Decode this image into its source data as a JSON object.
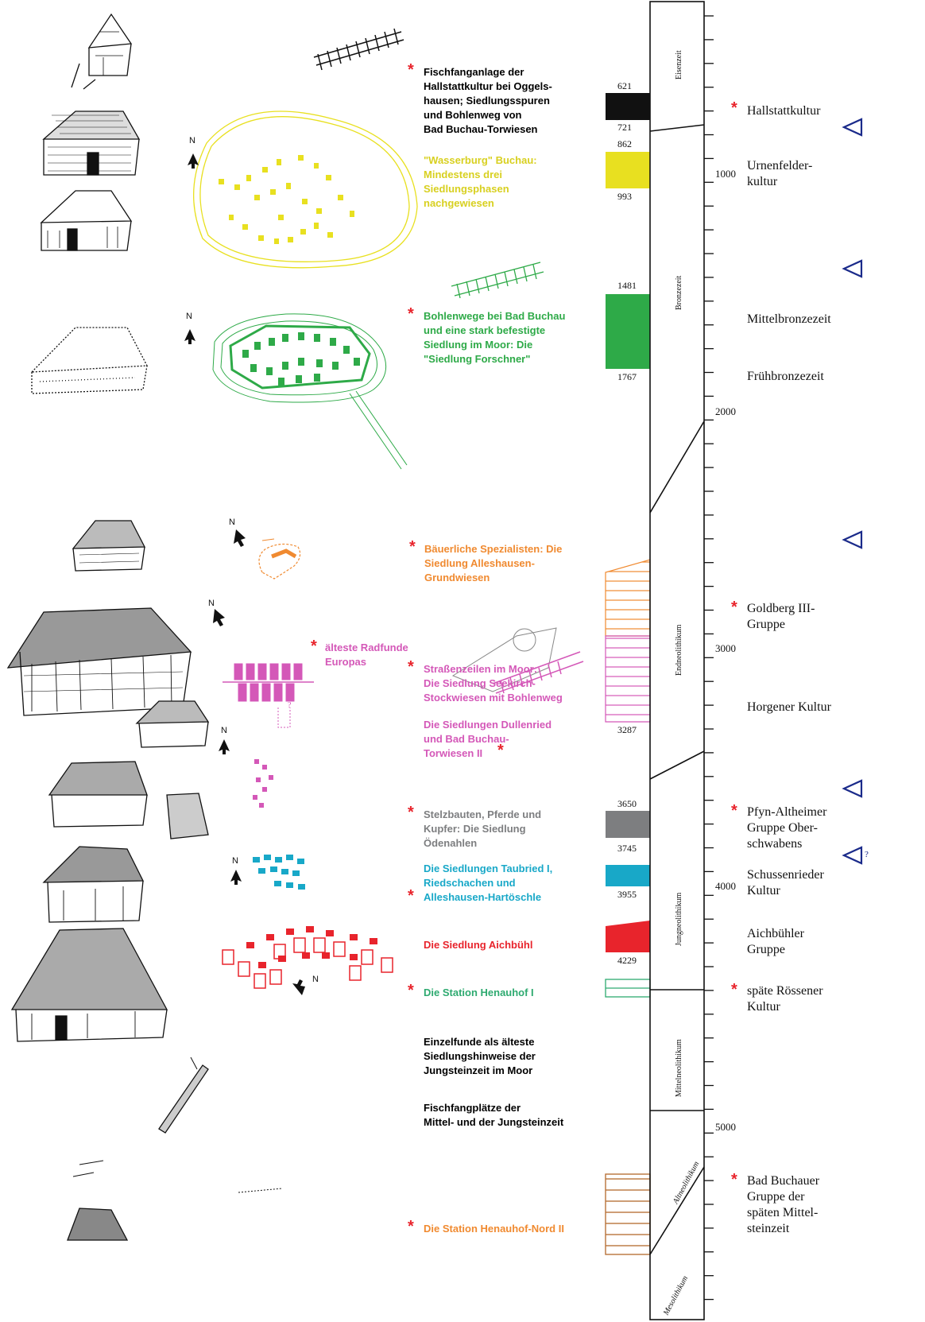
{
  "colors": {
    "black": "#111111",
    "yellow": "#e8e020",
    "green": "#2eaa48",
    "orange": "#f08a30",
    "magenta": "#d458b8",
    "gray": "#7d7e80",
    "cyan": "#18a8c8",
    "red": "#e8242c",
    "teal": "#2eaa70",
    "brown": "#b8733a",
    "blue": "#1a2a8a"
  },
  "labels": [
    {
      "id": "hallstatt-fishing",
      "text": "Fischfanganlage der\nHallstattkultur bei Oggels-\nhausen; Siedlungsspuren\nund Bohlenweg von\nBad Buchau-Torwiesen",
      "color": "#111111",
      "star": true
    },
    {
      "id": "wasserburg",
      "text": "\"Wasserburg\" Buchau:\nMindestens drei\nSiedlungsphasen\nnachgewiesen",
      "color": "#d8d020",
      "star": false
    },
    {
      "id": "forschner",
      "text": "Bohlenwege bei Bad Buchau\nund eine stark befestigte\nSiedlung im Moor: Die\n\"Siedlung Forschner\"",
      "color": "#2eaa48",
      "star": true
    },
    {
      "id": "alleshausen-grundwiesen",
      "text": "Bäuerliche Spezialisten: Die\nSiedlung Alleshausen-\nGrundwiesen",
      "color": "#f08a30",
      "star": true
    },
    {
      "id": "radfunde",
      "text": "älteste Radfunde\nEuropas",
      "color": "#d458b8",
      "star": true
    },
    {
      "id": "seekirch",
      "text": "Straßenzeilen im Moor:\nDie Siedlung Seekirch-\nStockwiesen mit Bohlenweg",
      "color": "#d458b8",
      "star": true
    },
    {
      "id": "dullenried",
      "text": "Die Siedlungen Dullenried\nund Bad Buchau-\nTorwiesen II",
      "color": "#d458b8",
      "star": true
    },
    {
      "id": "oedenahlen",
      "text": "Stelzbauten, Pferde und\nKupfer: Die Siedlung\nÖdenahlen",
      "color": "#7d7e80",
      "star": true
    },
    {
      "id": "taubried",
      "text": "Die Siedlungen Taubried I,\nRiedschachen und\nAlleshausen-Hartöschle",
      "color": "#18a8c8",
      "star": true
    },
    {
      "id": "aichbuehl",
      "text": "Die Siedlung Aichbühl",
      "color": "#e8242c",
      "star": false
    },
    {
      "id": "henauhof1",
      "text": "Die Station Henauhof I",
      "color": "#2eaa70",
      "star": true
    },
    {
      "id": "einzelfunde",
      "text": "Einzelfunde als älteste\nSiedlungshinweise der\nJungsteinzeit im Moor",
      "color": "#111111",
      "star": false
    },
    {
      "id": "fischfangplaetze",
      "text": "Fischfangplätze der\nMittel- und der Jungsteinzeit",
      "color": "#111111",
      "star": false
    },
    {
      "id": "henauhof-nord",
      "text": "Die Station Henauhof-Nord II",
      "color": "#f08a30",
      "star": true
    }
  ],
  "bar_numbers": [
    "621",
    "721",
    "862",
    "993",
    "1481",
    "1767",
    "3287",
    "3650",
    "3745",
    "3955",
    "4229"
  ],
  "scale_ticks": [
    "1000",
    "2000",
    "3000",
    "4000",
    "5000"
  ],
  "periods": [
    "Eisenzeit",
    "Bronzezeit",
    "Endneolithikum",
    "Jungneolithikum",
    "Mittelneolithikum",
    "Altneolithikum",
    "Mesolithikum"
  ],
  "cultures": [
    {
      "text": "Hallstattkultur",
      "star": true
    },
    {
      "text": "Urnenfelder-\nkultur",
      "star": false
    },
    {
      "text": "Mittelbronzezeit",
      "star": false
    },
    {
      "text": "Frühbronzezeit",
      "star": false
    },
    {
      "text": "Goldberg III-\nGruppe",
      "star": true
    },
    {
      "text": "Horgener Kultur",
      "star": false
    },
    {
      "text": "Pfyn-Altheimer\nGruppe Ober-\nschwabens",
      "star": true
    },
    {
      "text": "Schussenrieder\nKultur",
      "star": false
    },
    {
      "text": "Aichbühler\nGruppe",
      "star": false
    },
    {
      "text": "späte Rössener\nKultur",
      "star": true
    },
    {
      "text": "Bad Buchauer\nGruppe der\nspäten Mittel-\nsteinzeit",
      "star": true
    }
  ],
  "north_label": "N",
  "question_mark": "?"
}
